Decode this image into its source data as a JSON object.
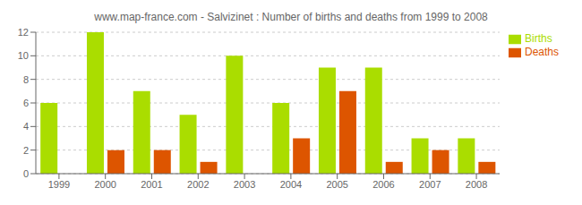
{
  "chart_data": {
    "type": "bar",
    "title": "www.map-france.com - Salvizinet : Number of births and deaths from 1999 to 2008",
    "categories": [
      "1999",
      "2000",
      "2001",
      "2002",
      "2003",
      "2004",
      "2005",
      "2006",
      "2007",
      "2008"
    ],
    "series": [
      {
        "name": "Births",
        "color": "#aadd00",
        "values": [
          6,
          12,
          7,
          5,
          10,
          6,
          9,
          9,
          3,
          3
        ]
      },
      {
        "name": "Deaths",
        "color": "#dd5500",
        "values": [
          0,
          2,
          2,
          1,
          0,
          3,
          7,
          1,
          2,
          1
        ]
      }
    ],
    "ylim": [
      0,
      12
    ],
    "yticks": [
      0,
      2,
      4,
      6,
      8,
      10,
      12
    ],
    "grid": true,
    "legend": "upper right"
  }
}
